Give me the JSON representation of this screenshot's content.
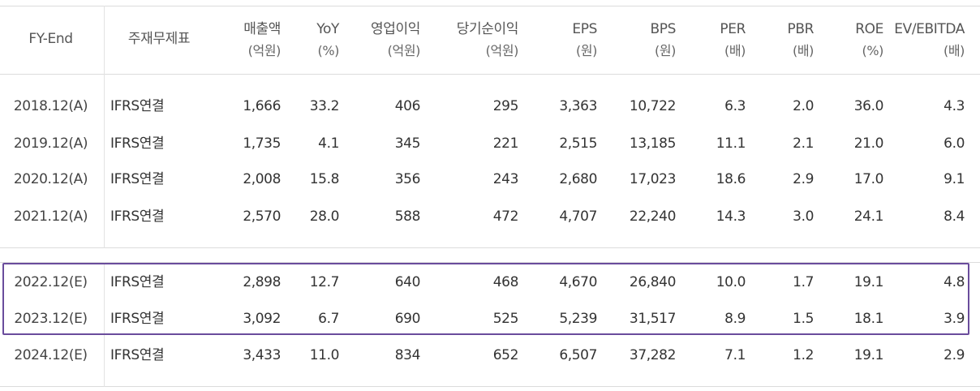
{
  "table": {
    "headers": [
      {
        "key": "fy_end",
        "label": "FY-End",
        "unit": ""
      },
      {
        "key": "standard",
        "label": "주재무제표",
        "unit": ""
      },
      {
        "key": "revenue",
        "label": "매출액",
        "unit": "(억원)"
      },
      {
        "key": "yoy",
        "label": "YoY",
        "unit": "(%)"
      },
      {
        "key": "op_income",
        "label": "영업이익",
        "unit": "(억원)"
      },
      {
        "key": "net_income",
        "label": "당기순이익",
        "unit": "(억원)"
      },
      {
        "key": "eps",
        "label": "EPS",
        "unit": "(원)"
      },
      {
        "key": "bps",
        "label": "BPS",
        "unit": "(원)"
      },
      {
        "key": "per",
        "label": "PER",
        "unit": "(배)"
      },
      {
        "key": "pbr",
        "label": "PBR",
        "unit": "(배)"
      },
      {
        "key": "roe",
        "label": "ROE",
        "unit": "(%)"
      },
      {
        "key": "ev_ebitda",
        "label": "EV/EBITDA",
        "unit": "(배)"
      }
    ],
    "rows": [
      [
        "2018.12(A)",
        "IFRS연결",
        "1,666",
        "33.2",
        "406",
        "295",
        "3,363",
        "10,722",
        "6.3",
        "2.0",
        "36.0",
        "4.3"
      ],
      [
        "2019.12(A)",
        "IFRS연결",
        "1,735",
        "4.1",
        "345",
        "221",
        "2,515",
        "13,185",
        "11.1",
        "2.1",
        "21.0",
        "6.0"
      ],
      [
        "2020.12(A)",
        "IFRS연결",
        "2,008",
        "15.8",
        "356",
        "243",
        "2,680",
        "17,023",
        "18.6",
        "2.9",
        "17.0",
        "9.1"
      ],
      [
        "2021.12(A)",
        "IFRS연결",
        "2,570",
        "28.0",
        "588",
        "472",
        "4,707",
        "22,240",
        "14.3",
        "3.0",
        "24.1",
        "8.4"
      ],
      [
        "2022.12(E)",
        "IFRS연결",
        "2,898",
        "12.7",
        "640",
        "468",
        "4,670",
        "26,840",
        "10.0",
        "1.7",
        "19.1",
        "4.8"
      ],
      [
        "2023.12(E)",
        "IFRS연결",
        "3,092",
        "6.7",
        "690",
        "525",
        "5,239",
        "31,517",
        "8.9",
        "1.5",
        "18.1",
        "3.9"
      ],
      [
        "2024.12(E)",
        "IFRS연결",
        "3,433",
        "11.0",
        "834",
        "652",
        "6,507",
        "37,282",
        "7.1",
        "1.2",
        "19.1",
        "2.9"
      ]
    ],
    "highlight_color": "#6a4c9c"
  }
}
